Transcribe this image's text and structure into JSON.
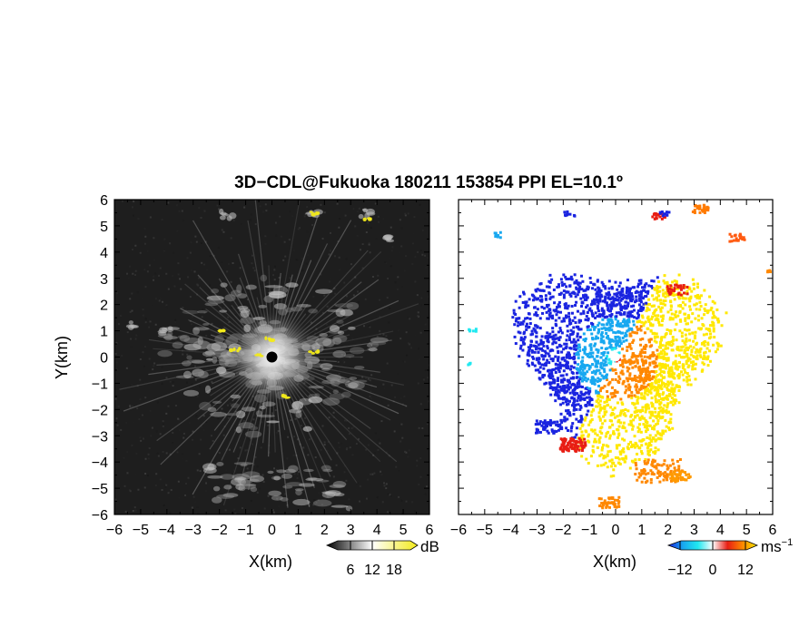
{
  "title": "3D−CDL@Fukuoka 180211 153854 PPI EL=10.1º",
  "chart_data": [
    {
      "type": "heatmap",
      "quantity": "echo intensity",
      "xlabel": "X(km)",
      "ylabel": "Y(km)",
      "xlim": [
        -6,
        6
      ],
      "ylim": [
        -6,
        6
      ],
      "xticks": [
        "−6",
        "−5",
        "−4",
        "−3",
        "−2",
        "−1",
        "0",
        "1",
        "2",
        "3",
        "4",
        "5",
        "6"
      ],
      "yticks": [
        "−6",
        "−5",
        "−4",
        "−3",
        "−2",
        "−1",
        "0",
        "1",
        "2",
        "3",
        "4",
        "5",
        "6"
      ],
      "colorbar": {
        "unit": "dB",
        "range": [
          0,
          24
        ],
        "ticks": [
          "6",
          "12",
          "18"
        ],
        "colors": [
          "#000000",
          "#ffffff",
          "#f2ea1a"
        ]
      },
      "background": "#1e1e1e",
      "radar_site": [
        0,
        0
      ],
      "features": [
        {
          "kind": "core echo",
          "x": 0,
          "y": 0,
          "radius_km": 1.8
        },
        {
          "kind": "strong echo",
          "x": -1.9,
          "y": 0.95
        },
        {
          "kind": "strong echo",
          "x": -1.4,
          "y": 0.25
        },
        {
          "kind": "strong echo",
          "x": -0.1,
          "y": 0.7
        },
        {
          "kind": "strong echo",
          "x": 1.6,
          "y": 0.15
        },
        {
          "kind": "strong echo",
          "x": -0.5,
          "y": 0.1
        },
        {
          "kind": "strong echo",
          "x": 1.6,
          "y": 5.5
        },
        {
          "kind": "strong echo",
          "x": 3.7,
          "y": 5.25
        },
        {
          "kind": "strong echo",
          "x": 0.5,
          "y": -1.5
        },
        {
          "kind": "echo band",
          "x": 0.7,
          "y": -4.5
        },
        {
          "kind": "echo band",
          "x": 1.0,
          "y": -5.2
        }
      ]
    },
    {
      "type": "heatmap",
      "quantity": "Doppler velocity",
      "xlabel": "X(km)",
      "ylabel": "",
      "xlim": [
        -6,
        6
      ],
      "ylim": [
        -6,
        6
      ],
      "xticks": [
        "−6",
        "−5",
        "−4",
        "−3",
        "−2",
        "−1",
        "0",
        "1",
        "2",
        "3",
        "4",
        "5",
        "6"
      ],
      "yticks": [],
      "colorbar": {
        "unit": "ms",
        "unit_exponent": "−1",
        "range": [
          -15,
          15
        ],
        "ticks": [
          "−12",
          "0",
          "12"
        ],
        "colors": [
          "#1a24e0",
          "#18a8f0",
          "#20e8f0",
          "#ffffff",
          "#e81e14",
          "#ff8800",
          "#ffe800"
        ]
      },
      "background": "#ffffff",
      "radar_site": [
        0,
        0
      ],
      "features": [
        {
          "kind": "receding/approaching boundary",
          "angle_deg": 62
        },
        {
          "kind": "negative patch",
          "x": -1.7,
          "y": -3.3
        },
        {
          "kind": "positive patch",
          "x": 1.5,
          "y": -4.3
        },
        {
          "kind": "positive patch",
          "x": 3.0,
          "y": 5.8
        },
        {
          "kind": "positive patch",
          "x": -0.3,
          "y": -5.5
        },
        {
          "kind": "negative patch",
          "x": -1.8,
          "y": 5.4
        }
      ]
    }
  ]
}
